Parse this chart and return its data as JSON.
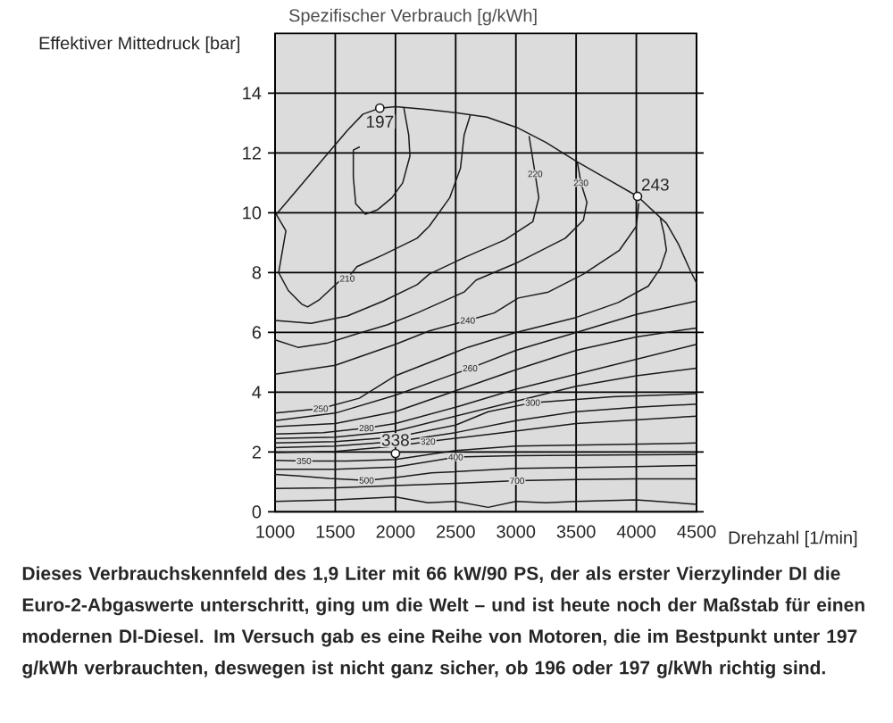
{
  "chart_data": {
    "type": "line",
    "title": "Spezifischer Verbrauch [g/kWh]",
    "xlabel": "Drehzahl [1/min]",
    "ylabel": "Effektiver Mittedruck [bar]",
    "xlim": [
      1000,
      4500
    ],
    "xticks": [
      1000,
      1500,
      2000,
      2500,
      3000,
      3500,
      4000,
      4500
    ],
    "ylim": [
      0,
      16
    ],
    "yticks": [
      0,
      2,
      4,
      6,
      8,
      10,
      12,
      14
    ],
    "grid": true,
    "series": [
      {
        "color": "#1a1a1a",
        "x": [
          1000,
          1200,
          1400,
          1600,
          1730,
          1870,
          2000,
          2270,
          2500,
          2760,
          3010,
          3250,
          3510,
          3750,
          4010,
          4250,
          4350,
          4450,
          4500
        ],
        "values": [
          9.9,
          10.85,
          11.8,
          12.75,
          13.3,
          13.5,
          13.55,
          13.45,
          13.35,
          13.2,
          12.85,
          12.35,
          11.7,
          11.15,
          10.55,
          9.65,
          8.95,
          8.05,
          7.65
        ]
      },
      {
        "color": "#1a1a1a",
        "x": [
          2070,
          2110,
          2120,
          2060,
          1970,
          1850,
          1750,
          1670,
          1650,
          1650,
          1700
        ],
        "values": [
          13.5,
          12.6,
          11.9,
          11.0,
          10.5,
          10.1,
          9.95,
          10.3,
          11.2,
          12.1,
          12.2
        ]
      },
      {
        "color": "#1a1a1a",
        "x": [
          1010,
          1090,
          1060,
          1030,
          1110,
          1220,
          1270,
          1370,
          1530,
          1600,
          1680,
          1900,
          2180,
          2280,
          2450,
          2540,
          2570,
          2620
        ],
        "values": [
          9.95,
          9.4,
          8.7,
          8.0,
          7.4,
          6.95,
          6.85,
          7.1,
          7.7,
          7.8,
          8.2,
          8.6,
          9.15,
          9.55,
          10.5,
          11.5,
          12.6,
          13.25
        ]
      },
      {
        "color": "#1a1a1a",
        "x": [
          1000,
          1300,
          1600,
          1900,
          2180,
          2280,
          2570,
          2910,
          3140,
          3190,
          3160,
          3110
        ],
        "values": [
          6.4,
          6.3,
          6.55,
          7.05,
          7.6,
          7.95,
          8.5,
          9.1,
          9.7,
          10.5,
          11.3,
          12.55
        ]
      },
      {
        "color": "#1a1a1a",
        "x": [
          1000,
          1190,
          1440,
          1680,
          1930,
          2180,
          2570,
          2670,
          3020,
          3410,
          3560,
          3590,
          3540,
          3510
        ],
        "values": [
          5.75,
          5.5,
          5.65,
          5.95,
          6.25,
          6.65,
          7.35,
          7.75,
          8.35,
          9.15,
          9.75,
          10.35,
          11.0,
          11.7
        ]
      },
      {
        "color": "#1a1a1a",
        "x": [
          1000,
          1500,
          2000,
          2280,
          2600,
          2820,
          3020,
          3270,
          3560,
          3860,
          4000,
          4020
        ],
        "values": [
          4.6,
          4.9,
          5.6,
          6.05,
          6.4,
          6.65,
          7.15,
          7.35,
          7.95,
          8.75,
          9.55,
          10.3
        ]
      },
      {
        "color": "#1a1a1a",
        "x": [
          1000,
          1380,
          1700,
          2000,
          2600,
          3000,
          3500,
          3850,
          4100,
          4200,
          4250,
          4230,
          4200
        ],
        "values": [
          3.3,
          3.45,
          3.8,
          4.55,
          5.5,
          6.0,
          6.5,
          7.0,
          7.55,
          8.15,
          8.75,
          9.3,
          9.8
        ]
      },
      {
        "color": "#1a1a1a",
        "x": [
          1000,
          1500,
          2000,
          2620,
          3000,
          3500,
          4000,
          4500
        ],
        "values": [
          3.05,
          3.3,
          3.9,
          4.8,
          5.4,
          6.0,
          6.6,
          7.05
        ]
      },
      {
        "color": "#1a1a1a",
        "x": [
          1000,
          1500,
          2000,
          2500,
          3000,
          3500,
          4000,
          4500
        ],
        "values": [
          2.85,
          2.95,
          3.35,
          4.05,
          4.75,
          5.4,
          5.85,
          6.15
        ]
      },
      {
        "color": "#1a1a1a",
        "x": [
          1000,
          1400,
          1760,
          2000,
          2500,
          3000,
          3500,
          4000,
          4500
        ],
        "values": [
          2.6,
          2.65,
          2.8,
          2.95,
          3.5,
          4.1,
          4.6,
          5.1,
          5.6
        ]
      },
      {
        "color": "#1a1a1a",
        "x": [
          1000,
          1500,
          2000,
          2500,
          3000,
          3500,
          4000,
          4500
        ],
        "values": [
          2.45,
          2.5,
          2.7,
          3.2,
          3.7,
          4.2,
          4.55,
          4.8
        ]
      },
      {
        "color": "#1a1a1a",
        "x": [
          1000,
          1500,
          2000,
          2500,
          2770,
          3140,
          3800,
          4500
        ],
        "values": [
          2.3,
          2.35,
          2.5,
          2.9,
          3.35,
          3.65,
          3.85,
          3.95
        ]
      },
      {
        "color": "#1a1a1a",
        "x": [
          1000,
          1500,
          2000,
          2500,
          3000,
          3500,
          4000,
          4500
        ],
        "values": [
          2.15,
          2.2,
          2.35,
          2.65,
          3.05,
          3.35,
          3.5,
          3.6
        ]
      },
      {
        "color": "#1a1a1a",
        "x": [
          1000,
          1500,
          2000,
          2270,
          2800,
          3500,
          4500
        ],
        "values": [
          1.98,
          2.02,
          2.2,
          2.35,
          2.6,
          2.95,
          3.2
        ]
      },
      {
        "color": "#1a1a1a",
        "x": [
          1000,
          1240,
          1600,
          2000,
          2500,
          3000,
          3800,
          4500
        ],
        "values": [
          1.72,
          1.7,
          1.7,
          1.75,
          2.05,
          2.2,
          2.25,
          2.3
        ]
      },
      {
        "color": "#1a1a1a",
        "x": [
          1000,
          1500,
          2000,
          2500,
          3000,
          3800,
          4500
        ],
        "values": [
          1.42,
          1.42,
          1.5,
          1.83,
          1.88,
          1.9,
          1.92
        ]
      },
      {
        "color": "#1a1a1a",
        "x": [
          1000,
          1200,
          1450,
          1760,
          2000,
          2300,
          3000,
          3800,
          4500
        ],
        "values": [
          1.25,
          1.2,
          1.12,
          1.05,
          1.15,
          1.3,
          1.45,
          1.5,
          1.55
        ]
      },
      {
        "color": "#1a1a1a",
        "x": [
          1000,
          1500,
          2000,
          2500,
          3010,
          3500,
          4000,
          4500
        ],
        "values": [
          0.78,
          0.8,
          0.88,
          0.95,
          1.04,
          1.08,
          1.1,
          1.1
        ]
      },
      {
        "color": "#1a1a1a",
        "x": [
          1000,
          1500,
          2000,
          2270,
          2500,
          2770,
          3000,
          3250,
          3500,
          4000,
          4500
        ],
        "values": [
          0.35,
          0.4,
          0.5,
          0.3,
          0.35,
          0.15,
          0.35,
          0.3,
          0.35,
          0.4,
          0.25
        ]
      },
      {
        "type": "scatter",
        "color": "#1a1a1a",
        "marker": "circle",
        "x": [
          1870,
          4010,
          2000
        ],
        "values": [
          13.5,
          10.55,
          1.95
        ]
      }
    ],
    "annotations": [
      "Dieses Verbrauchskennfeld des 1,9 Liter mit 66 kW/90 PS, der als erster Vierzylinder DI die Euro-2-Abgaswerte unterschritt, ging um die Welt – und ist heute noch der Maßstab für einen modernen DI-Diesel. Im Versuch gab es eine Reihe von Motoren, die im Bestpunkt unter 197 g/kWh verbrauchten, deswegen ist nicht ganz sicher, ob 196 oder 197 g/kWh richtig sind.",
      {
        "text": "197",
        "x": 1870,
        "y": 13.5
      },
      {
        "text": "243",
        "x": 4010,
        "y": 10.55
      },
      {
        "text": "338",
        "x": 2000,
        "y": 1.95
      },
      {
        "text": "210",
        "x": 1600,
        "y": 7.8
      },
      {
        "text": "220",
        "x": 3160,
        "y": 11.3
      },
      {
        "text": "230",
        "x": 3540,
        "y": 11.0
      },
      {
        "text": "240",
        "x": 2600,
        "y": 6.4
      },
      {
        "text": "250",
        "x": 1380,
        "y": 3.45
      },
      {
        "text": "260",
        "x": 2620,
        "y": 4.8
      },
      {
        "text": "280",
        "x": 1760,
        "y": 2.8
      },
      {
        "text": "300",
        "x": 3140,
        "y": 3.65
      },
      {
        "text": "320",
        "x": 2270,
        "y": 2.35
      },
      {
        "text": "350",
        "x": 1240,
        "y": 1.7
      },
      {
        "text": "400",
        "x": 2500,
        "y": 1.83
      },
      {
        "text": "500",
        "x": 1760,
        "y": 1.05
      },
      {
        "text": "700",
        "x": 3010,
        "y": 1.04
      }
    ]
  }
}
